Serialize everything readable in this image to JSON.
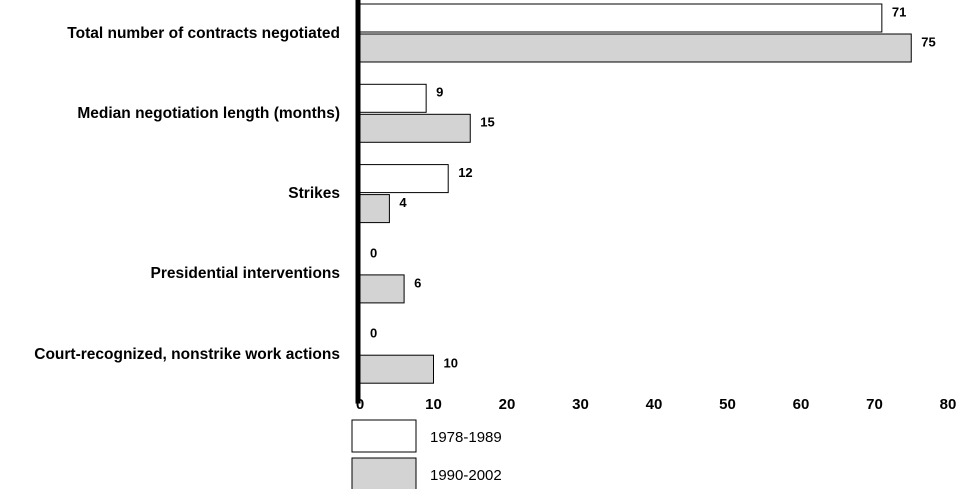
{
  "chart_data": {
    "type": "bar",
    "orientation": "horizontal",
    "categories": [
      "Total number of contracts negotiated",
      "Median negotiation length (months)",
      "Strikes",
      "Presidential interventions",
      "Court-recognized, nonstrike work actions"
    ],
    "series": [
      {
        "name": "1978-1989",
        "color": "#ffffff",
        "values": [
          71,
          9,
          12,
          0,
          0
        ]
      },
      {
        "name": "1990-2002",
        "color": "#d3d3d3",
        "values": [
          75,
          15,
          4,
          6,
          10
        ]
      }
    ],
    "xlim": [
      0,
      80
    ],
    "xticks": [
      0,
      10,
      20,
      30,
      40,
      50,
      60,
      70,
      80
    ],
    "grid": false
  }
}
